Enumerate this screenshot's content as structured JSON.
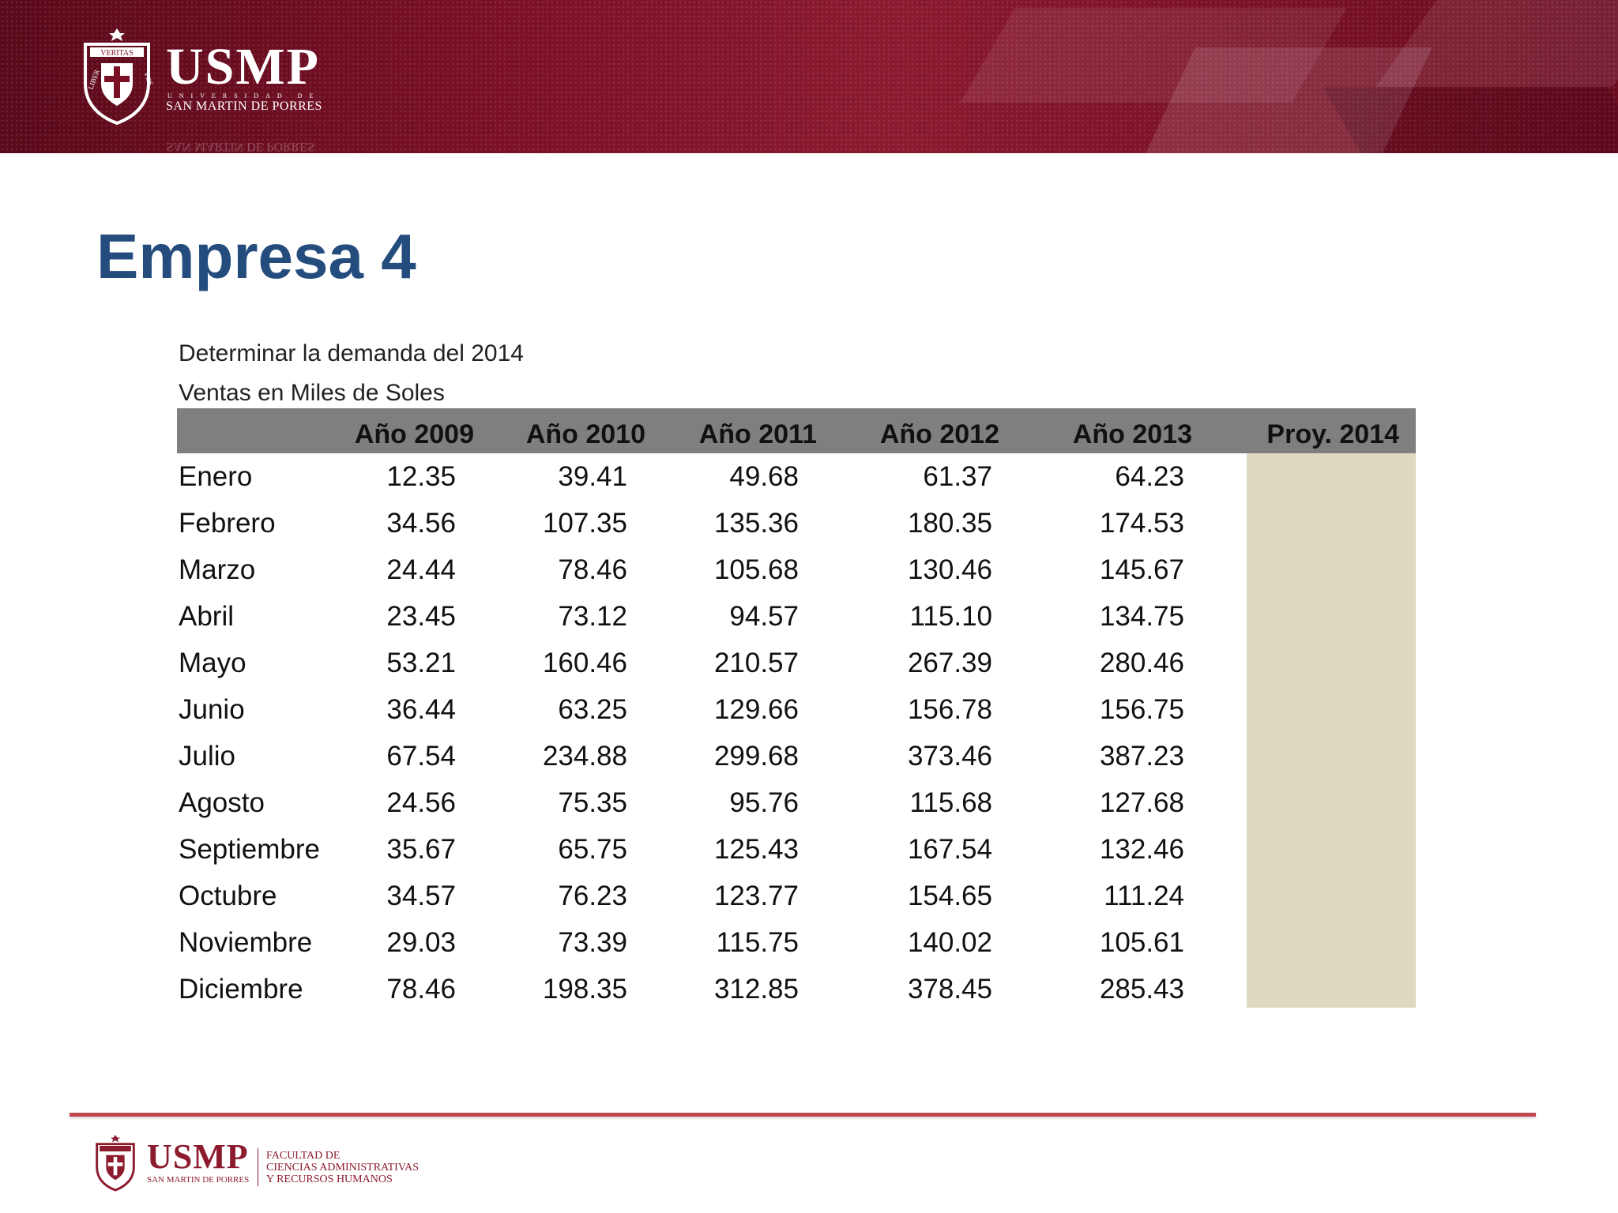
{
  "header": {
    "logo_text": "USMP",
    "logo_subtitle_small": "UNIVERSIDAD DE",
    "logo_subtitle": "SAN MARTIN DE PORRES",
    "crest_motto_top": "VERITAS",
    "crest_motto_sides": "LIBERABIT VOS"
  },
  "title": "Empresa 4",
  "captions": {
    "line1": "Determinar la demanda del 2014",
    "line2": "Ventas en Miles de Soles"
  },
  "table": {
    "columns": [
      "",
      "Año 2009",
      "Año 2010",
      "Año 2011",
      "Año 2012",
      "Año 2013",
      "Proy. 2014"
    ],
    "rows": [
      {
        "month": "Enero",
        "values": [
          "12.35",
          "39.41",
          "49.68",
          "61.37",
          "64.23",
          ""
        ]
      },
      {
        "month": "Febrero",
        "values": [
          "34.56",
          "107.35",
          "135.36",
          "180.35",
          "174.53",
          ""
        ]
      },
      {
        "month": "Marzo",
        "values": [
          "24.44",
          "78.46",
          "105.68",
          "130.46",
          "145.67",
          ""
        ]
      },
      {
        "month": "Abril",
        "values": [
          "23.45",
          "73.12",
          "94.57",
          "115.10",
          "134.75",
          ""
        ]
      },
      {
        "month": "Mayo",
        "values": [
          "53.21",
          "160.46",
          "210.57",
          "267.39",
          "280.46",
          ""
        ]
      },
      {
        "month": "Junio",
        "values": [
          "36.44",
          "63.25",
          "129.66",
          "156.78",
          "156.75",
          ""
        ]
      },
      {
        "month": "Julio",
        "values": [
          "67.54",
          "234.88",
          "299.68",
          "373.46",
          "387.23",
          ""
        ]
      },
      {
        "month": "Agosto",
        "values": [
          "24.56",
          "75.35",
          "95.76",
          "115.68",
          "127.68",
          ""
        ]
      },
      {
        "month": "Septiembre",
        "values": [
          "35.67",
          "65.75",
          "125.43",
          "167.54",
          "132.46",
          ""
        ]
      },
      {
        "month": "Octubre",
        "values": [
          "34.57",
          "76.23",
          "123.77",
          "154.65",
          "111.24",
          ""
        ]
      },
      {
        "month": "Noviembre",
        "values": [
          "29.03",
          "73.39",
          "115.75",
          "140.02",
          "105.61",
          ""
        ]
      },
      {
        "month": "Diciembre",
        "values": [
          "78.46",
          "198.35",
          "312.85",
          "378.45",
          "285.43",
          ""
        ]
      }
    ]
  },
  "footer": {
    "logo_text": "USMP",
    "logo_subtitle": "SAN MARTIN DE PORRES",
    "faculty": [
      "FACULTAD DE",
      "CIENCIAS ADMINISTRATIVAS",
      "Y RECURSOS HUMANOS"
    ]
  },
  "colors": {
    "banner": "#7a1026",
    "title": "#244d7e",
    "header_row": "#7f7f7f",
    "projection_column": "#dddac0",
    "footer_line": "#c0474f",
    "footer_brand": "#8c1b2e"
  }
}
